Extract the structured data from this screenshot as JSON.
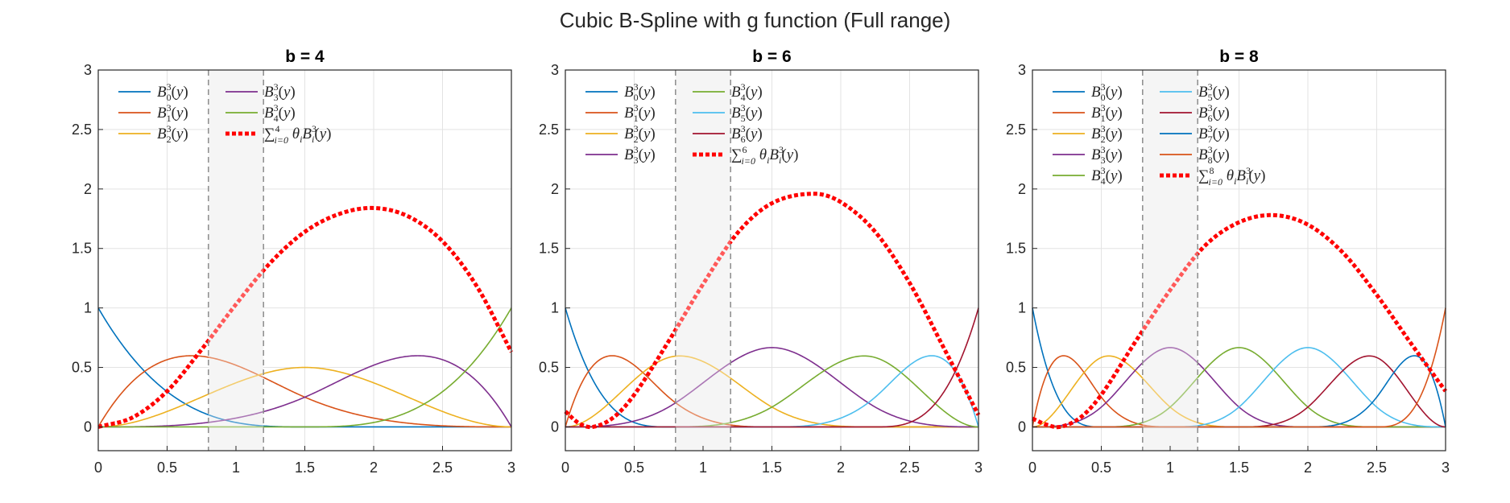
{
  "figure_title": "Cubic B-Spline with g function (Full range)",
  "chart_data": [
    {
      "type": "line",
      "title": "b = 4",
      "xlim": [
        0,
        3
      ],
      "ylim": [
        -0.2,
        3
      ],
      "xticks": [
        "0",
        "0.5",
        "1",
        "1.5",
        "2",
        "2.5",
        "3"
      ],
      "yticks": [
        "0",
        "0.5",
        "1",
        "1.5",
        "2",
        "2.5",
        "3"
      ],
      "grid": true,
      "shaded_region": [
        0.8,
        1.2
      ],
      "legend_position": "top-left",
      "legend_columns": 2,
      "basis": {
        "degree": 3,
        "count": 5
      },
      "series": [
        {
          "name": "B_0^3(y)",
          "color": "#0072BD"
        },
        {
          "name": "B_1^3(y)",
          "color": "#D95319"
        },
        {
          "name": "B_2^3(y)",
          "color": "#EDB120"
        },
        {
          "name": "B_3^3(y)",
          "color": "#7E2F8E"
        },
        {
          "name": "B_4^3(y)",
          "color": "#77AC30"
        },
        {
          "name": "sum_{i=0}^{4} θ_i B_i^3(y)",
          "color": "#FF0000",
          "style": "dotted",
          "x": [
            0,
            0.25,
            0.5,
            0.75,
            1.0,
            1.25,
            1.5,
            1.75,
            2.0,
            2.25,
            2.5,
            2.75,
            3.0
          ],
          "y": [
            0,
            0.08,
            0.3,
            0.65,
            1.03,
            1.38,
            1.64,
            1.79,
            1.84,
            1.77,
            1.56,
            1.18,
            0.63
          ]
        }
      ]
    },
    {
      "type": "line",
      "title": "b = 6",
      "xlim": [
        0,
        3
      ],
      "ylim": [
        -0.2,
        3
      ],
      "xticks": [
        "0",
        "0.5",
        "1",
        "1.5",
        "2",
        "2.5",
        "3"
      ],
      "yticks": [
        "0",
        "0.5",
        "1",
        "1.5",
        "2",
        "2.5",
        "3"
      ],
      "grid": true,
      "shaded_region": [
        0.8,
        1.2
      ],
      "legend_position": "top-left",
      "legend_columns": 2,
      "basis": {
        "degree": 3,
        "count": 7
      },
      "series": [
        {
          "name": "B_0^3(y)",
          "color": "#0072BD"
        },
        {
          "name": "B_1^3(y)",
          "color": "#D95319"
        },
        {
          "name": "B_2^3(y)",
          "color": "#EDB120"
        },
        {
          "name": "B_3^3(y)",
          "color": "#7E2F8E"
        },
        {
          "name": "B_4^3(y)",
          "color": "#77AC30"
        },
        {
          "name": "B_5^3(y)",
          "color": "#4DBEEE"
        },
        {
          "name": "B_6^3(y)",
          "color": "#A2142F"
        },
        {
          "name": "sum_{i=0}^{6} θ_i B_i^3(y)",
          "color": "#FF0000",
          "style": "dotted",
          "x": [
            0,
            0.1,
            0.2,
            0.35,
            0.5,
            0.75,
            1.0,
            1.25,
            1.5,
            1.8,
            2.0,
            2.25,
            2.5,
            2.75,
            3.0
          ],
          "y": [
            0.13,
            0.03,
            0.0,
            0.08,
            0.27,
            0.72,
            1.2,
            1.63,
            1.88,
            1.96,
            1.89,
            1.64,
            1.21,
            0.66,
            0.1
          ]
        }
      ]
    },
    {
      "type": "line",
      "title": "b = 8",
      "xlim": [
        0,
        3
      ],
      "ylim": [
        -0.2,
        3
      ],
      "xticks": [
        "0",
        "0.5",
        "1",
        "1.5",
        "2",
        "2.5",
        "3"
      ],
      "yticks": [
        "0",
        "0.5",
        "1",
        "1.5",
        "2",
        "2.5",
        "3"
      ],
      "grid": true,
      "shaded_region": [
        0.8,
        1.2
      ],
      "legend_position": "top-left",
      "legend_columns": 2,
      "basis": {
        "degree": 3,
        "count": 9
      },
      "series": [
        {
          "name": "B_0^3(y)",
          "color": "#0072BD"
        },
        {
          "name": "B_1^3(y)",
          "color": "#D95319"
        },
        {
          "name": "B_2^3(y)",
          "color": "#EDB120"
        },
        {
          "name": "B_3^3(y)",
          "color": "#7E2F8E"
        },
        {
          "name": "B_4^3(y)",
          "color": "#77AC30"
        },
        {
          "name": "B_5^3(y)",
          "color": "#4DBEEE"
        },
        {
          "name": "B_6^3(y)",
          "color": "#A2142F"
        },
        {
          "name": "B_7^3(y)",
          "color": "#0072BD"
        },
        {
          "name": "B_8^3(y)",
          "color": "#D95319"
        },
        {
          "name": "sum_{i=0}^{8} θ_i B_i^3(y)",
          "color": "#FF0000",
          "style": "dotted",
          "x": [
            0,
            0.1,
            0.2,
            0.35,
            0.5,
            0.75,
            1.0,
            1.25,
            1.5,
            1.75,
            2.0,
            2.25,
            2.5,
            2.75,
            3.0
          ],
          "y": [
            0.07,
            0.02,
            0.0,
            0.08,
            0.27,
            0.72,
            1.15,
            1.52,
            1.72,
            1.78,
            1.7,
            1.47,
            1.11,
            0.7,
            0.3
          ]
        }
      ]
    }
  ]
}
